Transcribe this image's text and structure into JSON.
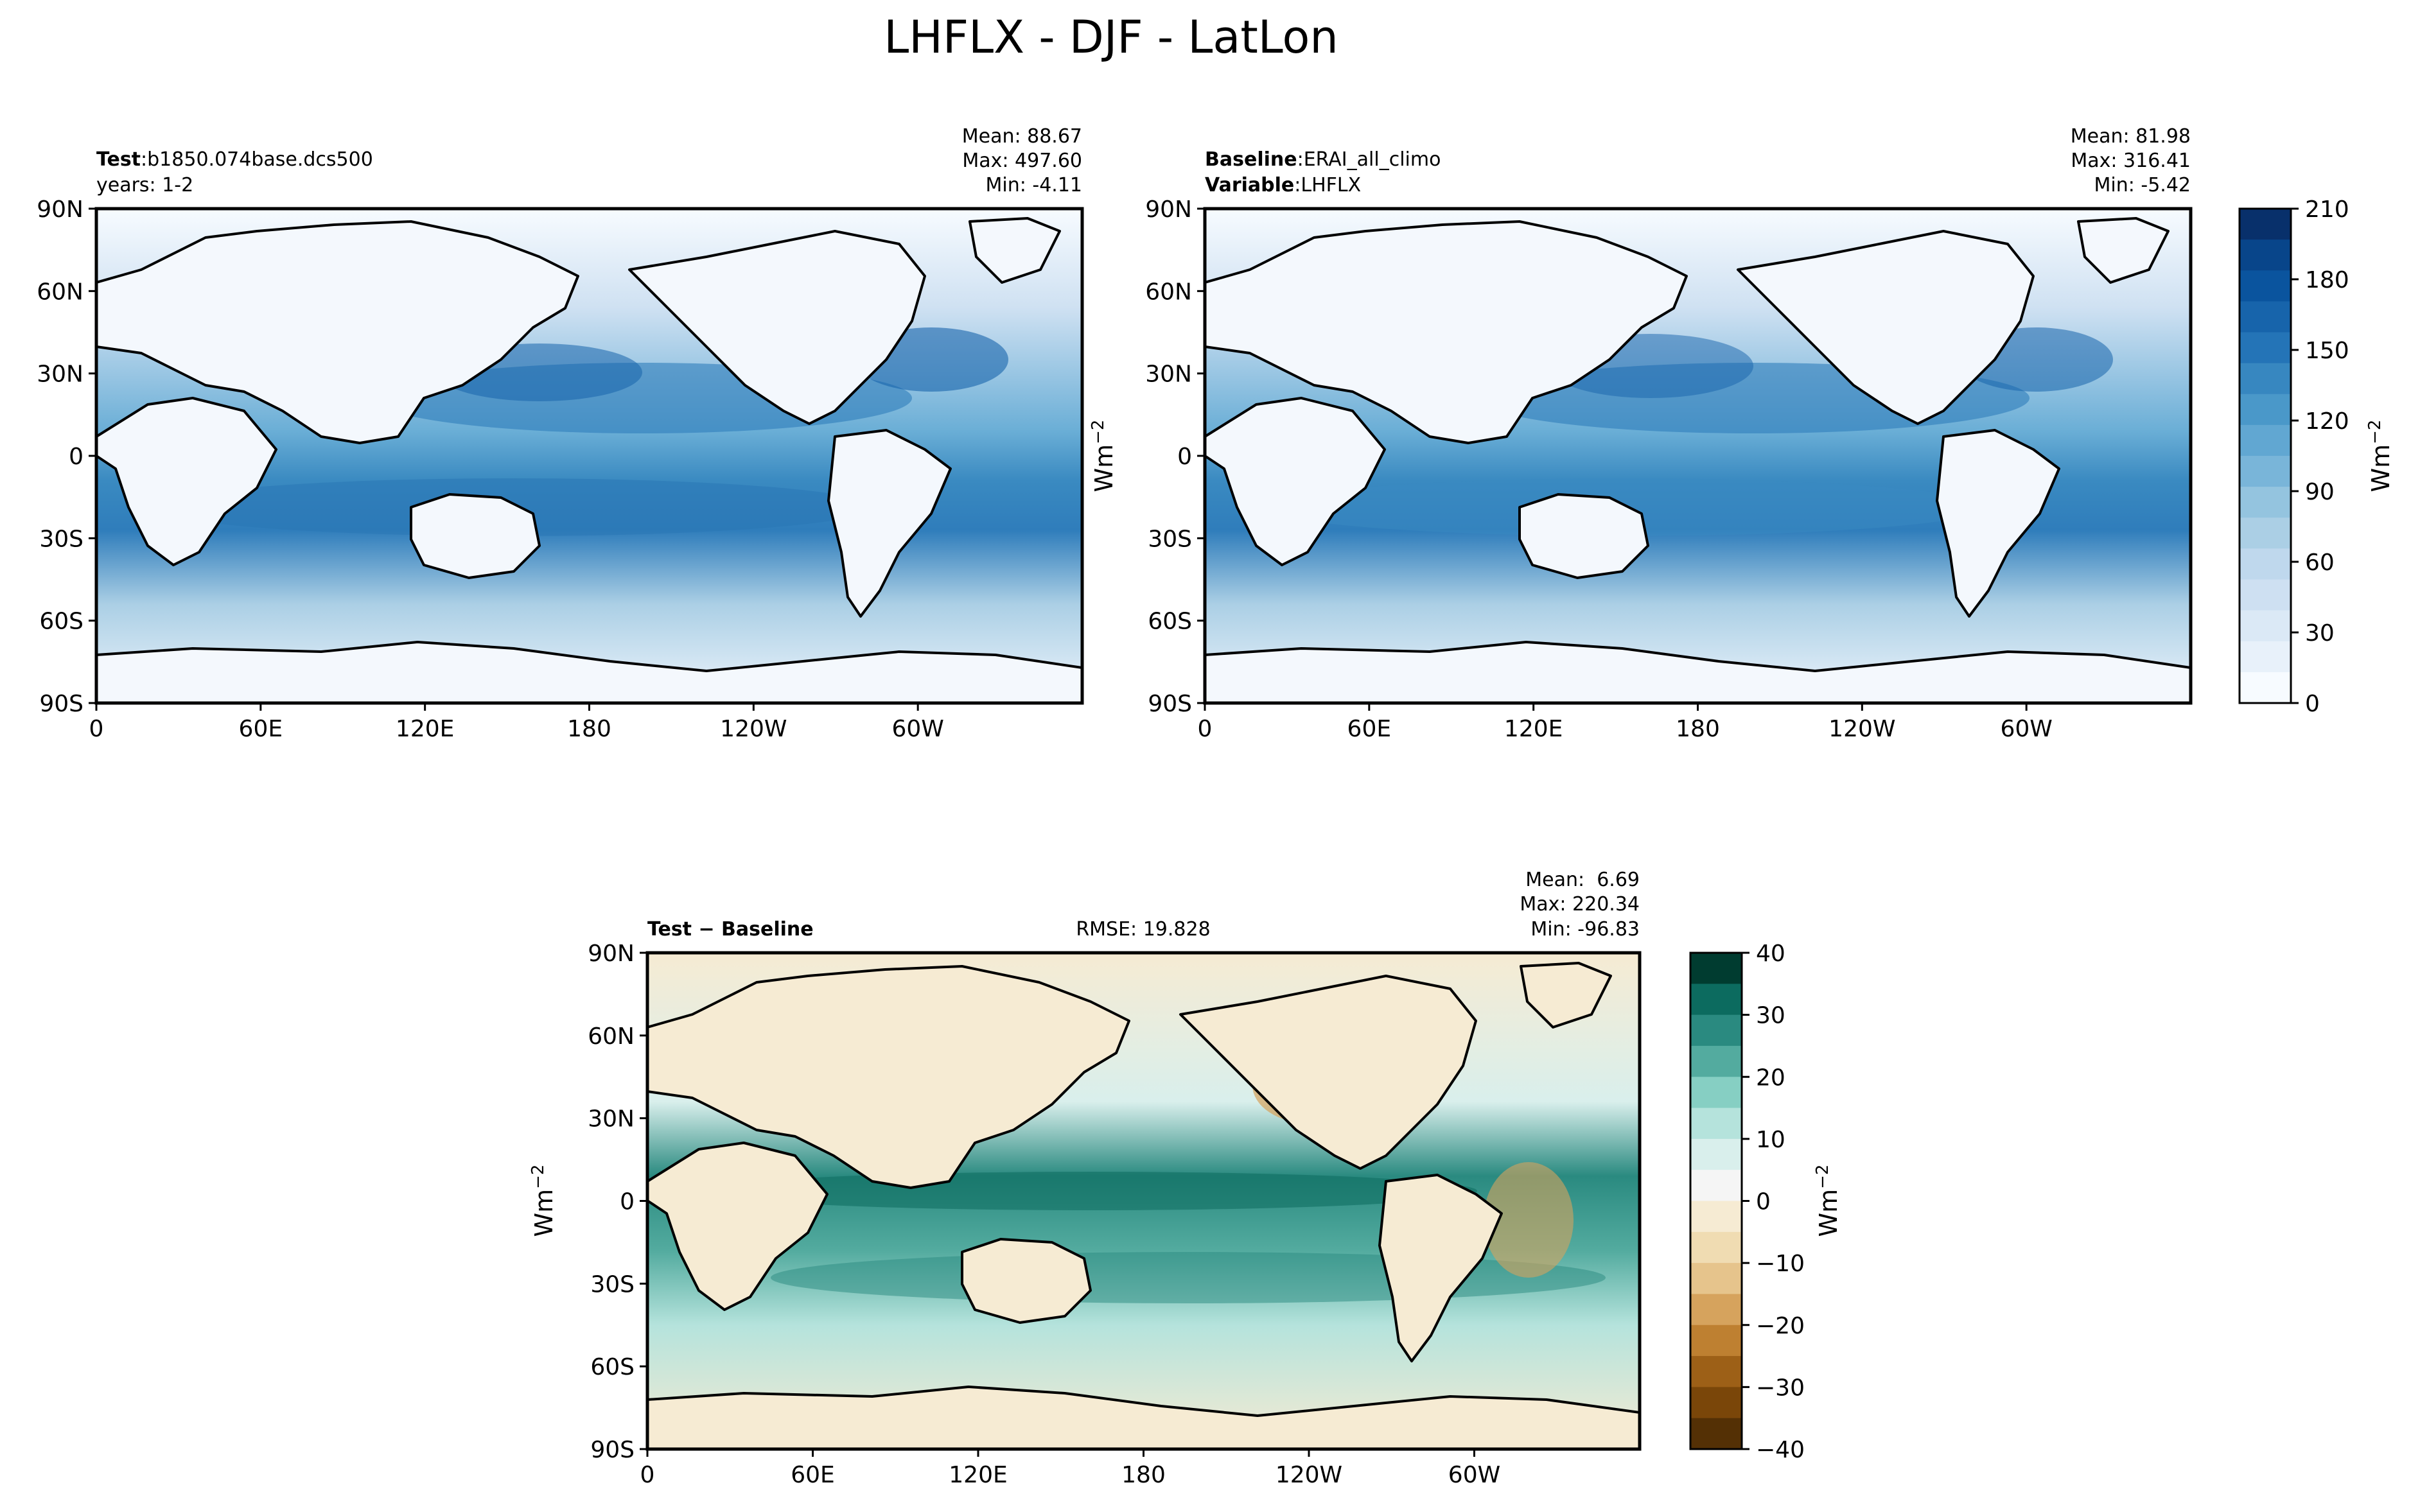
{
  "figure": {
    "title": "LHFLX - DJF - LatLon"
  },
  "chart_data": [
    {
      "type": "heatmap",
      "panel": "test",
      "label_bold": "Test",
      "label_sep": ":",
      "label_value": "b1850.074base.dcs500",
      "subtitle": "years: 1-2",
      "stats": [
        "Mean: 88.67",
        "Max: 497.60",
        "Min: -4.11"
      ],
      "ylabel": "",
      "xticks": [
        "0",
        "60E",
        "120E",
        "180",
        "120W",
        "60W"
      ],
      "yticks": [
        "90N",
        "60N",
        "30N",
        "0",
        "30S",
        "60S",
        "90S"
      ],
      "colormap": "Blues",
      "xlim": [
        0,
        360
      ],
      "ylim": [
        -90,
        90
      ]
    },
    {
      "type": "heatmap",
      "panel": "baseline",
      "label_bold": "Baseline",
      "label_sep": ":",
      "label_value": "ERAI_all_climo",
      "label2_bold": "Variable",
      "label2_value": "LHFLX",
      "stats": [
        "Mean: 81.98",
        "Max: 316.41",
        "Min: -5.42"
      ],
      "ylabel": "Wm",
      "ylabel_sup": "−2",
      "xticks": [
        "0",
        "60E",
        "120E",
        "180",
        "120W",
        "60W"
      ],
      "yticks": [
        "90N",
        "60N",
        "30N",
        "0",
        "30S",
        "60S",
        "90S"
      ],
      "colormap": "Blues",
      "xlim": [
        0,
        360
      ],
      "ylim": [
        -90,
        90
      ],
      "colorbar": {
        "ticks": [
          "210",
          "180",
          "150",
          "120",
          "90",
          "60",
          "30",
          "0"
        ],
        "range": [
          0,
          210
        ],
        "label": "Wm",
        "label_sup": "−2"
      }
    },
    {
      "type": "heatmap",
      "panel": "difference",
      "label_bold": "Test − Baseline",
      "rmse": "RMSE: 19.828",
      "stats": [
        "Mean:  6.69",
        "Max: 220.34",
        "Min: -96.83"
      ],
      "ylabel": "Wm",
      "ylabel_sup": "−2",
      "xticks": [
        "0",
        "60E",
        "120E",
        "180",
        "120W",
        "60W"
      ],
      "yticks": [
        "90N",
        "60N",
        "30N",
        "0",
        "30S",
        "60S",
        "90S"
      ],
      "colormap": "BrBG",
      "xlim": [
        0,
        360
      ],
      "ylim": [
        -90,
        90
      ],
      "colorbar": {
        "ticks": [
          "40",
          "30",
          "20",
          "10",
          "0",
          "−10",
          "−20",
          "−30",
          "−40"
        ],
        "range": [
          -40,
          40
        ],
        "label": "Wm",
        "label_sup": "−2"
      }
    }
  ],
  "colors": {
    "blues": [
      "#f7fbff",
      "#e8f1fa",
      "#dbe9f6",
      "#cee0f2",
      "#bfd8ed",
      "#abcfe5",
      "#94c4df",
      "#79b5d9",
      "#61a7d2",
      "#4a98c9",
      "#3787c0",
      "#2474b7",
      "#1764ab",
      "#0a549e",
      "#08458a",
      "#08306b"
    ],
    "brbg": [
      "#543005",
      "#7a4609",
      "#9d6017",
      "#be8031",
      "#d6a35d",
      "#e6c48c",
      "#f0dcb2",
      "#f6ebd3",
      "#f5f5f5",
      "#d9efec",
      "#b5e3dc",
      "#86cfc3",
      "#53ab9f",
      "#2a8a80",
      "#0c6b5f",
      "#003c30"
    ]
  }
}
